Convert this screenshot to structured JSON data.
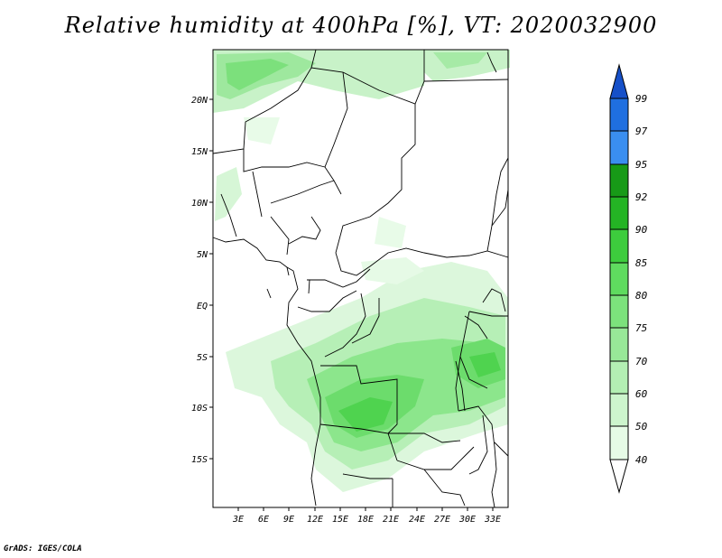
{
  "title": "Relative humidity at 400hPa [%], VT: 2020032900",
  "credit": "GrADS: IGES/COLA",
  "map": {
    "lat_labels": [
      "20N",
      "15N",
      "10N",
      "5N",
      "EQ",
      "5S",
      "10S",
      "15S"
    ],
    "lon_labels": [
      "3E",
      "6E",
      "9E",
      "12E",
      "15E",
      "18E",
      "21E",
      "24E",
      "27E",
      "30E",
      "33E"
    ]
  },
  "colorbar": {
    "levels": [
      "40",
      "50",
      "60",
      "70",
      "75",
      "80",
      "85",
      "90",
      "92",
      "95",
      "97",
      "99"
    ],
    "colors": [
      "#ffffff",
      "#e6fbe6",
      "#cdf5cd",
      "#b3efb3",
      "#98e898",
      "#7ce27c",
      "#5fdb5f",
      "#3dcc3d",
      "#24b424",
      "#179a17",
      "#3a8ef0",
      "#1f6fe0",
      "#1650c8"
    ]
  }
}
